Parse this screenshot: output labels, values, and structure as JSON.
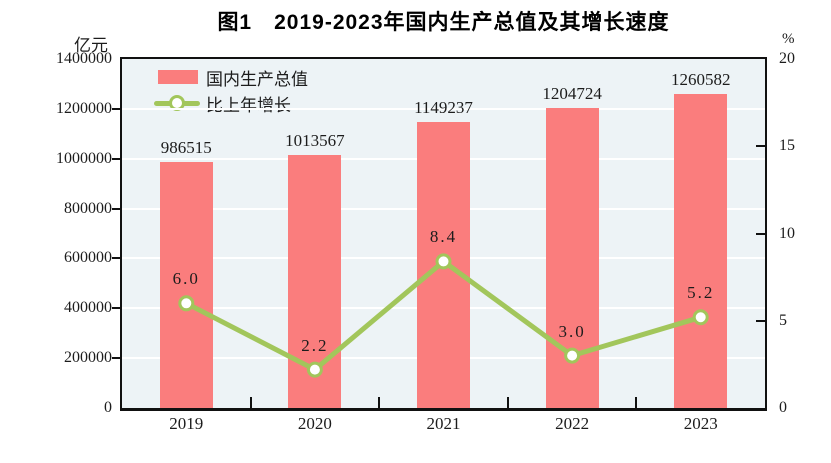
{
  "title": "图1　2019-2023年国内生产总值及其增长速度",
  "left_axis": {
    "unit": "亿元",
    "tick_values": [
      1400000,
      1200000,
      1000000,
      800000,
      600000,
      400000,
      200000,
      0
    ]
  },
  "right_axis": {
    "unit": "%",
    "tick_values": [
      20,
      15,
      10,
      5,
      0
    ]
  },
  "legend": {
    "items": [
      {
        "label": "国内生产总值"
      },
      {
        "label": "比上年增长"
      }
    ]
  },
  "chart_data": {
    "type": "bar+line",
    "title": "图1　2019-2023年国内生产总值及其增长速度",
    "categories": [
      "2019",
      "2020",
      "2021",
      "2022",
      "2023"
    ],
    "series": [
      {
        "name": "国内生产总值",
        "type": "bar",
        "axis": "left",
        "values": [
          986515,
          1013567,
          1149237,
          1204724,
          1260582
        ],
        "value_labels": [
          "986515",
          "1013567",
          "1149237",
          "1204724",
          "1260582"
        ]
      },
      {
        "name": "比上年增长",
        "type": "line",
        "axis": "right",
        "values": [
          6.0,
          2.2,
          8.4,
          3.0,
          5.2
        ],
        "value_labels": [
          "6.0",
          "2.2",
          "8.4",
          "3.0",
          "5.2"
        ]
      }
    ],
    "ylabel_left": "亿元",
    "ylabel_right": "%",
    "left_ylim": [
      0,
      1400000
    ],
    "right_ylim": [
      0,
      20
    ],
    "left_tick_step": 200000,
    "right_tick_step": 5,
    "grid": true,
    "legend_position": "top-left"
  },
  "colors": {
    "bar": "#fa7d7d",
    "line": "#a2c65b",
    "marker_fill": "#ffffff",
    "plot_bg": "#edf3f6",
    "grid_line": "#ffffff",
    "axis": "#111111",
    "text": "#1c1c1c"
  }
}
